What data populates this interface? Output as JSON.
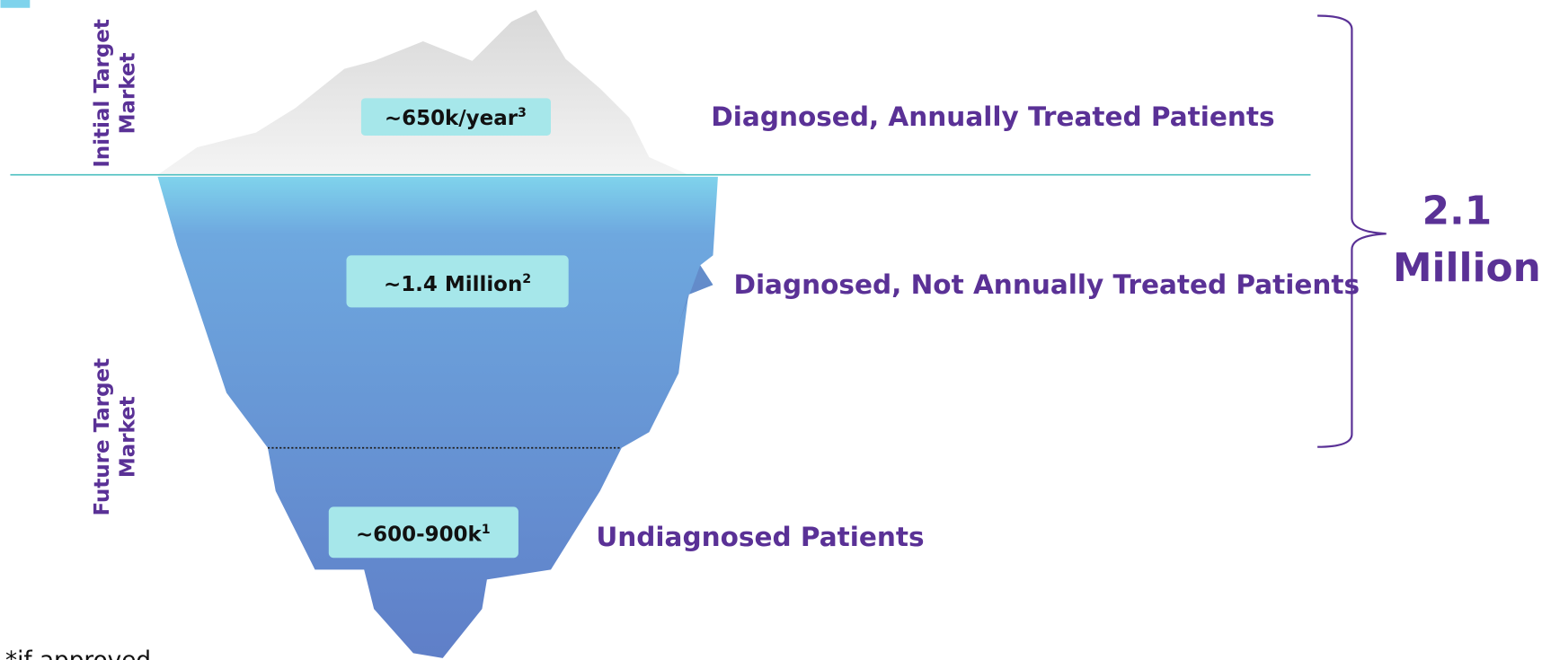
{
  "side_labels": {
    "initial": [
      "Initial Target",
      "Market"
    ],
    "future": [
      "Future Target",
      "Market"
    ]
  },
  "iceberg_boxes": [
    {
      "text": "~650k/year",
      "sup": "3"
    },
    {
      "text": "~1.4 Million",
      "sup": "2"
    },
    {
      "text": "~600-900k",
      "sup": "1"
    }
  ],
  "descriptions": [
    "Diagnosed, Annually Treated Patients",
    "Diagnosed, Not Annually Treated Patients",
    "Undiagnosed Patients"
  ],
  "total": [
    "2.1",
    "Million"
  ],
  "footnote": "*if approved"
}
